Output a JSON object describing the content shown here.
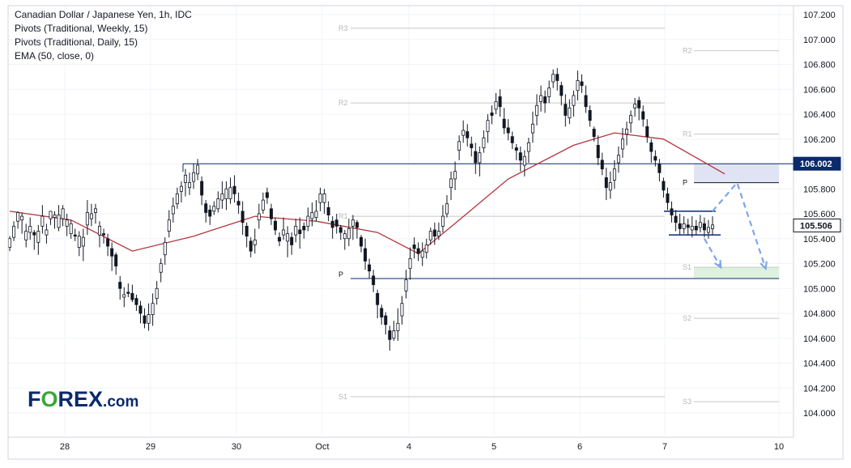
{
  "legend": {
    "line1": "Canadian Dollar / Japanese Yen, 1h, IDC",
    "line2": "Pivots (Traditional, Weekly, 15)",
    "line3": "Pivots (Traditional, Daily, 15)",
    "line4": "EMA (50, close, 0)"
  },
  "logo": {
    "part1": "F",
    "part2": "O",
    "part3": "REX",
    "part4": ".com"
  },
  "colors": {
    "candle": "#131722",
    "ema": "#b5343c",
    "resistance": "#0a2a6b",
    "forecast_arrow": "#7ea6e8",
    "resistance_zone": "#dfe3f4",
    "target_zone": "#dcf2dc",
    "pivot_line": "#c8c8c8",
    "price_tag_bg": "#0a2a6b",
    "grid": "#f0f3fa"
  },
  "chart_data": {
    "type": "candlestick",
    "x_tick_labels": [
      "28",
      "29",
      "30",
      "Oct",
      "4",
      "5",
      "6",
      "7",
      "10"
    ],
    "y_ticks": [
      "107.200",
      "107.000",
      "106.800",
      "106.600",
      "106.400",
      "106.200",
      "106.000",
      "105.800",
      "105.600",
      "105.400",
      "105.200",
      "105.000",
      "104.800",
      "104.600",
      "104.400",
      "104.200",
      "104.000"
    ],
    "ylim": [
      103.8,
      107.3
    ],
    "current_price": "105.506",
    "resistance_price": "106.002",
    "resistance_level": 106.002,
    "pivot_labels": {
      "weekly_prev": [
        {
          "name": "R3",
          "value": 107.09
        },
        {
          "name": "R2",
          "value": 106.49
        },
        {
          "name": "R1",
          "value": 105.58
        },
        {
          "name": "P",
          "value": 105.08
        },
        {
          "name": "S1",
          "value": 104.13
        }
      ],
      "weekly_curr": [
        {
          "name": "R2",
          "value": 106.91
        },
        {
          "name": "R1",
          "value": 106.24
        },
        {
          "name": "P",
          "value": 105.85
        },
        {
          "name": "S1",
          "value": 105.17
        },
        {
          "name": "S2",
          "value": 104.76
        },
        {
          "name": "S3",
          "value": 104.09
        }
      ]
    },
    "zones": {
      "resistance_zone": [
        105.85,
        106.0
      ],
      "target_zone": [
        105.08,
        105.17
      ]
    },
    "range_box": {
      "high": 105.62,
      "low": 105.43
    },
    "candles": [
      [
        105.33,
        105.4,
        105.3,
        105.42
      ],
      [
        105.41,
        105.5,
        105.38,
        105.54
      ],
      [
        105.54,
        105.61,
        105.48,
        105.62
      ],
      [
        105.55,
        105.58,
        105.44,
        105.61
      ],
      [
        105.39,
        105.46,
        105.33,
        105.52
      ],
      [
        105.45,
        105.5,
        105.39,
        105.57
      ],
      [
        105.45,
        105.43,
        105.31,
        105.47
      ],
      [
        105.37,
        105.46,
        105.27,
        105.51
      ],
      [
        105.5,
        105.58,
        105.44,
        105.67
      ],
      [
        105.43,
        105.47,
        105.36,
        105.52
      ],
      [
        105.56,
        105.62,
        105.51,
        105.62
      ],
      [
        105.57,
        105.59,
        105.48,
        105.62
      ],
      [
        105.49,
        105.59,
        105.46,
        105.67
      ],
      [
        105.56,
        105.64,
        105.5,
        105.67
      ],
      [
        105.5,
        105.55,
        105.42,
        105.6
      ],
      [
        105.44,
        105.52,
        105.4,
        105.55
      ],
      [
        105.43,
        105.42,
        105.38,
        105.48
      ],
      [
        105.33,
        105.42,
        105.26,
        105.46
      ],
      [
        105.34,
        105.41,
        105.22,
        105.48
      ],
      [
        105.51,
        105.61,
        105.43,
        105.71
      ],
      [
        105.56,
        105.6,
        105.5,
        105.68
      ],
      [
        105.61,
        105.64,
        105.52,
        105.68
      ],
      [
        105.43,
        105.5,
        105.33,
        105.54
      ],
      [
        105.44,
        105.43,
        105.36,
        105.48
      ],
      [
        105.4,
        105.34,
        105.26,
        105.44
      ],
      [
        105.32,
        105.26,
        105.14,
        105.37
      ],
      [
        105.27,
        105.18,
        105.11,
        105.29
      ],
      [
        105.05,
        105.0,
        104.91,
        105.1
      ],
      [
        104.93,
        104.95,
        104.85,
        105.01
      ],
      [
        104.97,
        104.96,
        104.93,
        105.04
      ],
      [
        104.96,
        104.91,
        104.89,
        105.03
      ],
      [
        104.92,
        104.87,
        104.82,
        104.95
      ],
      [
        104.86,
        104.8,
        104.72,
        104.9
      ],
      [
        104.78,
        104.72,
        104.68,
        104.84
      ],
      [
        104.72,
        104.79,
        104.66,
        104.88
      ],
      [
        104.79,
        104.88,
        104.7,
        104.96
      ],
      [
        104.92,
        105.0,
        104.87,
        105.06
      ],
      [
        105.13,
        105.2,
        105.05,
        105.24
      ],
      [
        105.27,
        105.37,
        105.19,
        105.41
      ],
      [
        105.46,
        105.55,
        105.41,
        105.63
      ],
      [
        105.6,
        105.66,
        105.53,
        105.73
      ],
      [
        105.68,
        105.76,
        105.64,
        105.81
      ],
      [
        105.78,
        105.82,
        105.69,
        105.86
      ],
      [
        105.85,
        105.91,
        105.74,
        105.96
      ],
      [
        105.81,
        105.85,
        105.75,
        105.93
      ],
      [
        105.86,
        105.93,
        105.8,
        106.0
      ],
      [
        105.92,
        105.99,
        105.87,
        106.04
      ],
      [
        105.86,
        105.75,
        105.67,
        105.9
      ],
      [
        105.68,
        105.61,
        105.53,
        105.71
      ],
      [
        105.63,
        105.58,
        105.51,
        105.67
      ],
      [
        105.62,
        105.66,
        105.59,
        105.7
      ],
      [
        105.64,
        105.72,
        105.61,
        105.78
      ],
      [
        105.71,
        105.76,
        105.64,
        105.86
      ],
      [
        105.72,
        105.8,
        105.63,
        105.86
      ],
      [
        105.72,
        105.81,
        105.68,
        105.89
      ],
      [
        105.82,
        105.76,
        105.69,
        105.91
      ],
      [
        105.7,
        105.67,
        105.6,
        105.77
      ],
      [
        105.62,
        105.53,
        105.43,
        105.7
      ],
      [
        105.5,
        105.42,
        105.33,
        105.53
      ],
      [
        105.38,
        105.3,
        105.25,
        105.41
      ],
      [
        105.35,
        105.39,
        105.28,
        105.48
      ],
      [
        105.55,
        105.6,
        105.48,
        105.68
      ],
      [
        105.63,
        105.71,
        105.6,
        105.77
      ],
      [
        105.77,
        105.73,
        105.68,
        105.81
      ],
      [
        105.64,
        105.56,
        105.51,
        105.68
      ],
      [
        105.54,
        105.47,
        105.43,
        105.57
      ],
      [
        105.41,
        105.38,
        105.34,
        105.45
      ],
      [
        105.43,
        105.47,
        105.39,
        105.57
      ],
      [
        105.38,
        105.44,
        105.25,
        105.5
      ],
      [
        105.41,
        105.35,
        105.27,
        105.45
      ],
      [
        105.43,
        105.5,
        105.37,
        105.56
      ],
      [
        105.47,
        105.44,
        105.32,
        105.57
      ],
      [
        105.5,
        105.47,
        105.4,
        105.53
      ],
      [
        105.5,
        105.58,
        105.46,
        105.65
      ],
      [
        105.56,
        105.61,
        105.5,
        105.69
      ],
      [
        105.57,
        105.62,
        105.54,
        105.71
      ],
      [
        105.69,
        105.76,
        105.62,
        105.81
      ],
      [
        105.69,
        105.76,
        105.6,
        105.8
      ],
      [
        105.65,
        105.59,
        105.54,
        105.7
      ],
      [
        105.54,
        105.49,
        105.4,
        105.58
      ],
      [
        105.55,
        105.5,
        105.44,
        105.6
      ],
      [
        105.49,
        105.45,
        105.39,
        105.51
      ],
      [
        105.4,
        105.44,
        105.31,
        105.47
      ],
      [
        105.4,
        105.48,
        105.34,
        105.56
      ],
      [
        105.5,
        105.55,
        105.39,
        105.59
      ],
      [
        105.53,
        105.49,
        105.4,
        105.55
      ],
      [
        105.41,
        105.34,
        105.29,
        105.43
      ],
      [
        105.32,
        105.22,
        105.15,
        105.4
      ],
      [
        105.19,
        105.14,
        105.08,
        105.24
      ],
      [
        105.1,
        105.03,
        104.97,
        105.15
      ],
      [
        104.96,
        104.87,
        104.76,
        104.99
      ],
      [
        104.84,
        104.77,
        104.71,
        104.87
      ],
      [
        104.78,
        104.71,
        104.63,
        104.81
      ],
      [
        104.66,
        104.59,
        104.5,
        104.7
      ],
      [
        104.6,
        104.66,
        104.58,
        104.74
      ],
      [
        104.66,
        104.72,
        104.58,
        104.84
      ],
      [
        104.78,
        104.88,
        104.71,
        104.94
      ],
      [
        104.98,
        105.07,
        104.92,
        105.15
      ],
      [
        105.16,
        105.24,
        105.07,
        105.33
      ],
      [
        105.35,
        105.32,
        105.24,
        105.41
      ],
      [
        105.32,
        105.28,
        105.22,
        105.37
      ],
      [
        105.25,
        105.3,
        105.18,
        105.37
      ],
      [
        105.29,
        105.35,
        105.24,
        105.4
      ],
      [
        105.39,
        105.46,
        105.35,
        105.49
      ],
      [
        105.47,
        105.42,
        105.35,
        105.53
      ],
      [
        105.42,
        105.46,
        105.39,
        105.53
      ],
      [
        105.5,
        105.58,
        105.45,
        105.67
      ],
      [
        105.6,
        105.68,
        105.57,
        105.75
      ],
      [
        105.81,
        105.88,
        105.71,
        105.94
      ],
      [
        105.88,
        105.94,
        105.79,
        106.02
      ],
      [
        106.11,
        106.18,
        106.03,
        106.23
      ],
      [
        106.23,
        106.27,
        106.17,
        106.35
      ],
      [
        106.26,
        106.21,
        106.14,
        106.32
      ],
      [
        106.16,
        106.13,
        106.06,
        106.22
      ],
      [
        106.1,
        106.01,
        105.92,
        106.17
      ],
      [
        106.01,
        106.09,
        105.9,
        106.14
      ],
      [
        106.13,
        106.21,
        106.09,
        106.27
      ],
      [
        106.26,
        106.35,
        106.17,
        106.4
      ],
      [
        106.41,
        106.39,
        106.32,
        106.47
      ],
      [
        106.44,
        106.5,
        106.4,
        106.57
      ],
      [
        106.54,
        106.46,
        106.38,
        106.6
      ],
      [
        106.36,
        106.29,
        106.24,
        106.45
      ],
      [
        106.29,
        106.25,
        106.19,
        106.36
      ],
      [
        106.22,
        106.17,
        106.12,
        106.26
      ],
      [
        106.13,
        106.11,
        106.03,
        106.16
      ],
      [
        106.09,
        106.03,
        105.94,
        106.14
      ],
      [
        105.99,
        106.06,
        105.9,
        106.11
      ],
      [
        106.1,
        106.17,
        106.01,
        106.21
      ],
      [
        106.25,
        106.32,
        106.17,
        106.42
      ],
      [
        106.39,
        106.47,
        106.31,
        106.56
      ],
      [
        106.5,
        106.55,
        106.42,
        106.63
      ],
      [
        106.54,
        106.49,
        106.41,
        106.59
      ],
      [
        106.54,
        106.61,
        106.49,
        106.67
      ],
      [
        106.66,
        106.72,
        106.61,
        106.76
      ],
      [
        106.72,
        106.67,
        106.59,
        106.77
      ],
      [
        106.63,
        106.55,
        106.47,
        106.66
      ],
      [
        106.48,
        106.39,
        106.3,
        106.56
      ],
      [
        106.37,
        106.45,
        106.32,
        106.52
      ],
      [
        106.47,
        106.55,
        106.38,
        106.59
      ],
      [
        106.59,
        106.67,
        106.51,
        106.75
      ],
      [
        106.66,
        106.63,
        106.57,
        106.72
      ],
      [
        106.55,
        106.46,
        106.41,
        106.63
      ],
      [
        106.43,
        106.35,
        106.3,
        106.47
      ],
      [
        106.28,
        106.22,
        106.18,
        106.3
      ],
      [
        106.15,
        106.05,
        105.99,
        106.23
      ],
      [
        106.03,
        105.96,
        105.91,
        106.09
      ],
      [
        105.89,
        105.81,
        105.71,
        105.97
      ],
      [
        105.79,
        105.85,
        105.72,
        105.94
      ],
      [
        105.87,
        105.96,
        105.8,
        106.03
      ],
      [
        106.01,
        106.07,
        105.93,
        106.14
      ],
      [
        106.12,
        106.2,
        106.05,
        106.29
      ],
      [
        106.24,
        106.28,
        106.15,
        106.34
      ],
      [
        106.33,
        106.39,
        106.25,
        106.43
      ],
      [
        106.45,
        106.48,
        106.38,
        106.53
      ],
      [
        106.51,
        106.45,
        106.35,
        106.54
      ],
      [
        106.42,
        106.36,
        106.3,
        106.47
      ],
      [
        106.3,
        106.22,
        106.17,
        106.36
      ],
      [
        106.17,
        106.1,
        106.01,
        106.2
      ],
      [
        106.06,
        106.03,
        105.98,
        106.11
      ],
      [
        106.0,
        105.93,
        105.86,
        106.04
      ],
      [
        105.86,
        105.79,
        105.73,
        105.89
      ],
      [
        105.76,
        105.69,
        105.63,
        105.81
      ],
      [
        105.64,
        105.59,
        105.53,
        105.7
      ],
      [
        105.58,
        105.53,
        105.46,
        105.63
      ],
      [
        105.52,
        105.48,
        105.43,
        105.6
      ],
      [
        105.48,
        105.52,
        105.44,
        105.58
      ],
      [
        105.51,
        105.49,
        105.43,
        105.56
      ],
      [
        105.47,
        105.5,
        105.41,
        105.58
      ],
      [
        105.5,
        105.47,
        105.43,
        105.55
      ],
      [
        105.49,
        105.53,
        105.45,
        105.59
      ],
      [
        105.52,
        105.47,
        105.41,
        105.57
      ],
      [
        105.45,
        105.49,
        105.4,
        105.55
      ],
      [
        105.48,
        105.51,
        105.43,
        105.58
      ]
    ],
    "ema": [
      [
        0,
        105.62
      ],
      [
        15,
        105.55
      ],
      [
        30,
        105.3
      ],
      [
        45,
        105.42
      ],
      [
        60,
        105.58
      ],
      [
        75,
        105.54
      ],
      [
        90,
        105.45
      ],
      [
        100,
        105.28
      ],
      [
        110,
        105.55
      ],
      [
        122,
        105.88
      ],
      [
        138,
        106.15
      ],
      [
        148,
        106.25
      ],
      [
        160,
        106.2
      ],
      [
        175,
        105.92
      ]
    ],
    "forecast_path": [
      [
        172,
        105.62
      ],
      [
        178,
        105.85
      ],
      [
        185,
        105.16
      ]
    ],
    "forecast_path_2": [
      [
        170,
        105.4
      ],
      [
        174,
        105.17
      ]
    ]
  }
}
